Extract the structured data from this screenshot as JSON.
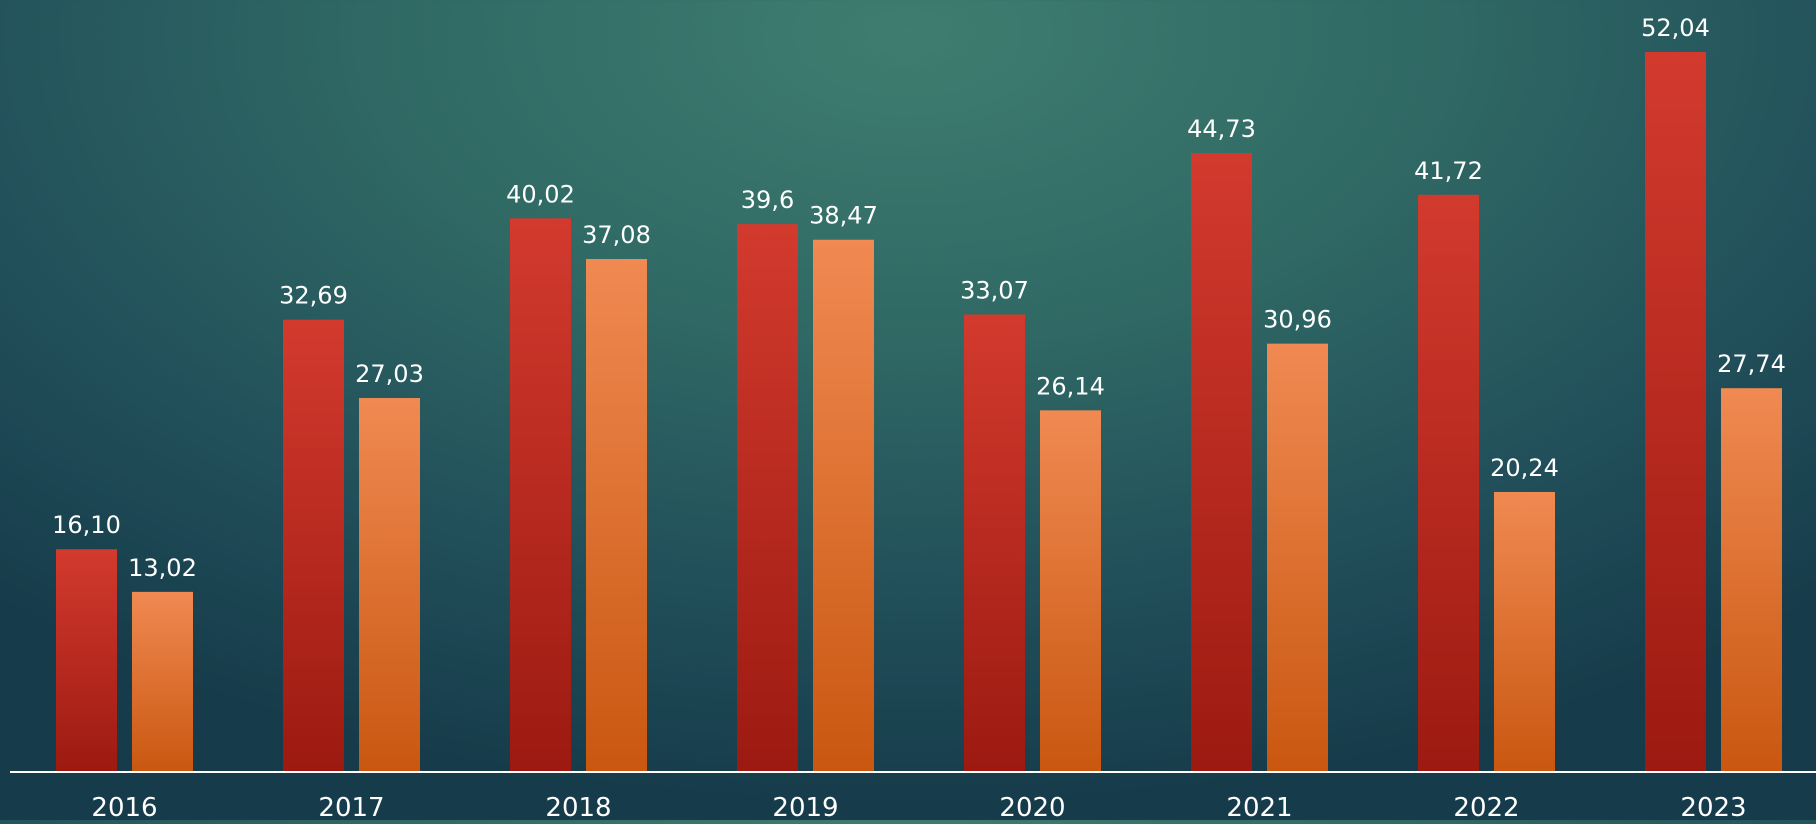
{
  "chart_data": {
    "type": "bar",
    "categories": [
      "2016",
      "2017",
      "2018",
      "2019",
      "2020",
      "2021",
      "2022",
      "2023"
    ],
    "series": [
      {
        "color": "#c9372c",
        "values": [
          16.1,
          32.69,
          40.02,
          39.6,
          33.07,
          44.73,
          41.72,
          52.04
        ],
        "labels": [
          "16,10",
          "32,69",
          "40,02",
          "39,6",
          "33,07",
          "44,73",
          "41,72",
          "52,04"
        ]
      },
      {
        "color": "#ee844d",
        "values": [
          13.02,
          27.03,
          37.08,
          38.47,
          26.14,
          30.96,
          20.24,
          27.74
        ],
        "labels": [
          "13,02",
          "27,03",
          "37,08",
          "38,47",
          "26,14",
          "30,96",
          "20,24",
          "27,74"
        ]
      }
    ],
    "title": "",
    "xlabel": "",
    "ylabel": "",
    "ylim": [
      0,
      52.04
    ],
    "grid": false,
    "legend": "none"
  }
}
